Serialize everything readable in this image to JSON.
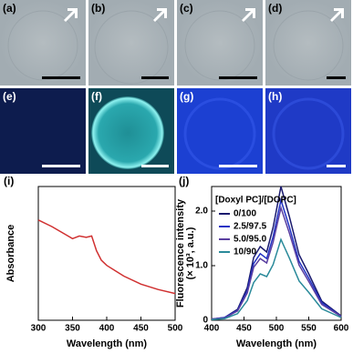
{
  "image_panels": [
    "(a)",
    "(b)",
    "(c)",
    "(d)",
    "(e)",
    "(f)",
    "(g)",
    "(h)"
  ],
  "chart_data": [
    {
      "type": "line",
      "panel": "(i)",
      "xlabel": "Wavelength (nm)",
      "ylabel": "Absorbance",
      "x": [
        300,
        320,
        340,
        350,
        360,
        370,
        378,
        385,
        392,
        400,
        425,
        450,
        475,
        500
      ],
      "values": [
        0.75,
        0.7,
        0.64,
        0.61,
        0.63,
        0.62,
        0.63,
        0.52,
        0.45,
        0.41,
        0.33,
        0.27,
        0.23,
        0.2
      ],
      "color": "#d03030",
      "xlim": [
        300,
        500
      ],
      "xticks": [
        300,
        350,
        400,
        450,
        500
      ],
      "ylim": [
        0,
        1
      ]
    },
    {
      "type": "line",
      "panel": "(j)",
      "xlabel": "Wavelength (nm)",
      "ylabel": [
        "Fluorescence intensity",
        "(× 10³, a.u.)"
      ],
      "legend_title": "[Doxyl PC]/[DOPC]",
      "x": [
        400,
        420,
        440,
        455,
        465,
        475,
        485,
        495,
        507,
        520,
        535,
        550,
        570,
        600
      ],
      "series": [
        {
          "name": "0/100",
          "color": "#1a1a6e",
          "values": [
            0.02,
            0.05,
            0.2,
            0.6,
            1.15,
            1.35,
            1.25,
            1.7,
            2.45,
            1.9,
            1.2,
            0.85,
            0.35,
            0.08
          ]
        },
        {
          "name": "2.5/97.5",
          "color": "#2233c4",
          "values": [
            0.02,
            0.05,
            0.18,
            0.54,
            1.04,
            1.22,
            1.13,
            1.53,
            2.2,
            1.71,
            1.08,
            0.77,
            0.32,
            0.07
          ]
        },
        {
          "name": "5.0/95.0",
          "color": "#5a3fa0",
          "values": [
            0.02,
            0.04,
            0.17,
            0.5,
            0.97,
            1.13,
            1.05,
            1.43,
            2.06,
            1.6,
            1.01,
            0.71,
            0.29,
            0.07
          ]
        },
        {
          "name": "10/90",
          "color": "#2a8a9a",
          "values": [
            0.01,
            0.03,
            0.12,
            0.36,
            0.69,
            0.85,
            0.8,
            1.02,
            1.48,
            1.14,
            0.72,
            0.51,
            0.21,
            0.05
          ]
        }
      ],
      "xlim": [
        400,
        600
      ],
      "xticks": [
        400,
        450,
        500,
        550,
        600
      ],
      "ylim": [
        0,
        2.45
      ],
      "yticks": [
        0,
        {
          "value": 1,
          "label": "1.0"
        },
        {
          "value": 2,
          "label": "2.0"
        }
      ]
    }
  ]
}
